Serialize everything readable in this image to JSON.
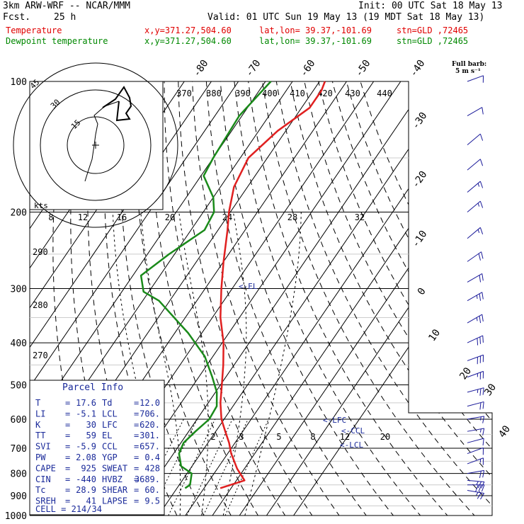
{
  "header": {
    "model": "3km ARW-WRF -- NCAR/MMM",
    "init": "Init: 00 UTC Sat 18 May 13",
    "fcst_label": "Fcst.",
    "fcst_value": "25 h",
    "valid": "Valid: 01 UTC Sun 19 May 13 (19 MDT Sat 18 May 13)",
    "temp_line": {
      "name": "Temperature",
      "xy": "x,y=371.27,504.60",
      "latlon": "lat,lon= 39.37,-101.69",
      "stn": "stn=GLD ,72465"
    },
    "dew_line": {
      "name": "Dewpoint temperature",
      "xy": "x,y=371.27,504.60",
      "latlon": "lat,lon= 39.37,-101.69",
      "stn": "stn=GLD ,72465"
    }
  },
  "colors": {
    "temperature": "#e02020",
    "dewpoint": "#1a8a1a",
    "header_red": "#e00000",
    "header_green": "#008800",
    "parcel_text": "#1a2a9a",
    "wind": "#1a1a9a",
    "grid": "#000000"
  },
  "chart_data": {
    "type": "line",
    "title": "Skew-T log-P sounding",
    "y_axis": {
      "label": "Pressure (hPa)",
      "scale": "log",
      "ticks": [
        100,
        200,
        300,
        400,
        500,
        600,
        700,
        800,
        900,
        1000
      ]
    },
    "isotherm_labels": [
      -80,
      -70,
      -60,
      -50,
      -40,
      -30,
      -20,
      -10,
      0,
      10,
      20,
      30,
      40
    ],
    "theta_labels": [
      370,
      380,
      390,
      400,
      410,
      420,
      430,
      440
    ],
    "theta_label_left": [
      290,
      280,
      270
    ],
    "hodograph_ticks": [
      "8",
      "12",
      "16",
      "20",
      "24",
      "28",
      "32"
    ],
    "mixing_ratio_labels": [
      "2",
      "3",
      "5",
      "8",
      "12",
      "20"
    ],
    "levels": {
      "lfc": "<-LFC",
      "ccl": "<-CCL",
      "lcl": "<-LCL",
      "el": "<-EL"
    },
    "hodograph": {
      "rings": [
        "15",
        "30",
        "45"
      ],
      "units": "kts"
    },
    "barb_legend": {
      "title": "Full barb:",
      "value": "5 m s⁻¹"
    },
    "series": [
      {
        "name": "Temperature",
        "color": "#e02020",
        "points": [
          [
            865,
            16
          ],
          [
            830,
            23
          ],
          [
            780,
            17.3
          ],
          [
            720,
            11.3
          ],
          [
            680,
            7.8
          ],
          [
            640,
            3.5
          ],
          [
            600,
            -1
          ],
          [
            550,
            -5.5
          ],
          [
            500,
            -9.5
          ],
          [
            450,
            -14
          ],
          [
            400,
            -19.5
          ],
          [
            350,
            -27
          ],
          [
            300,
            -34
          ],
          [
            260,
            -40
          ],
          [
            220,
            -46.5
          ],
          [
            200,
            -50.5
          ],
          [
            175,
            -55
          ],
          [
            150,
            -57
          ],
          [
            130,
            -53
          ],
          [
            115,
            -47
          ],
          [
            105,
            -47
          ],
          [
            100,
            -48
          ]
        ]
      },
      {
        "name": "Dewpoint temperature",
        "color": "#1a8a1a",
        "points": [
          [
            865,
            3
          ],
          [
            850,
            4
          ],
          [
            800,
            1.7
          ],
          [
            770,
            -4
          ],
          [
            720,
            -8
          ],
          [
            680,
            -9
          ],
          [
            640,
            -7.5
          ],
          [
            600,
            -5.5
          ],
          [
            560,
            -6
          ],
          [
            520,
            -9.5
          ],
          [
            480,
            -15
          ],
          [
            430,
            -23
          ],
          [
            380,
            -35
          ],
          [
            320,
            -54
          ],
          [
            305,
            -62
          ],
          [
            280,
            -67
          ],
          [
            250,
            -62
          ],
          [
            220,
            -55
          ],
          [
            200,
            -56
          ],
          [
            185,
            -60
          ],
          [
            165,
            -69
          ],
          [
            150,
            -70
          ],
          [
            120,
            -71
          ],
          [
            100,
            -68
          ]
        ]
      }
    ],
    "wind_profile": [
      [
        875,
        280,
        25
      ],
      [
        850,
        270,
        30
      ],
      [
        830,
        275,
        28
      ],
      [
        800,
        260,
        20
      ],
      [
        760,
        250,
        15
      ],
      [
        720,
        250,
        10
      ],
      [
        680,
        255,
        12
      ],
      [
        640,
        260,
        15
      ],
      [
        600,
        260,
        18
      ],
      [
        560,
        255,
        22
      ],
      [
        520,
        255,
        25
      ],
      [
        480,
        250,
        28
      ],
      [
        440,
        250,
        30
      ],
      [
        400,
        245,
        30
      ],
      [
        360,
        240,
        28
      ],
      [
        320,
        240,
        25
      ],
      [
        290,
        240,
        20
      ],
      [
        260,
        235,
        20
      ],
      [
        230,
        230,
        15
      ],
      [
        200,
        230,
        15
      ],
      [
        180,
        230,
        15
      ],
      [
        160,
        230,
        10
      ],
      [
        140,
        230,
        10
      ],
      [
        120,
        240,
        10
      ],
      [
        100,
        250,
        10
      ]
    ]
  },
  "parcel_info": {
    "title": "Parcel Info",
    "rows": [
      {
        "l1": "T",
        "v1": "17.6",
        "l2": "Td",
        "v2": "12.0"
      },
      {
        "l1": "LI",
        "v1": "-5.1",
        "l2": "LCL",
        "v2": "706."
      },
      {
        "l1": "K",
        "v1": "30",
        "l2": "LFC",
        "v2": "620."
      },
      {
        "l1": "TT",
        "v1": "59",
        "l2": "EL",
        "v2": "301."
      },
      {
        "l1": "SVI",
        "v1": "-5.9",
        "l2": "CCL",
        "v2": "657."
      },
      {
        "l1": "PW",
        "v1": "2.08",
        "l2": "YGP",
        "v2": "0.4"
      },
      {
        "l1": "CAPE",
        "v1": "925",
        "l2": "SWEAT",
        "v2": "428"
      },
      {
        "l1": "CIN",
        "v1": "-440",
        "l2": "HVBZ",
        "v2": "3689."
      },
      {
        "l1": "Tc",
        "v1": "28.9",
        "l2": "SHEAR",
        "v2": "60."
      },
      {
        "l1": "SREH",
        "v1": "41",
        "l2": "LAPSE",
        "v2": "9.5"
      }
    ],
    "cell": "CELL = 214/34"
  }
}
